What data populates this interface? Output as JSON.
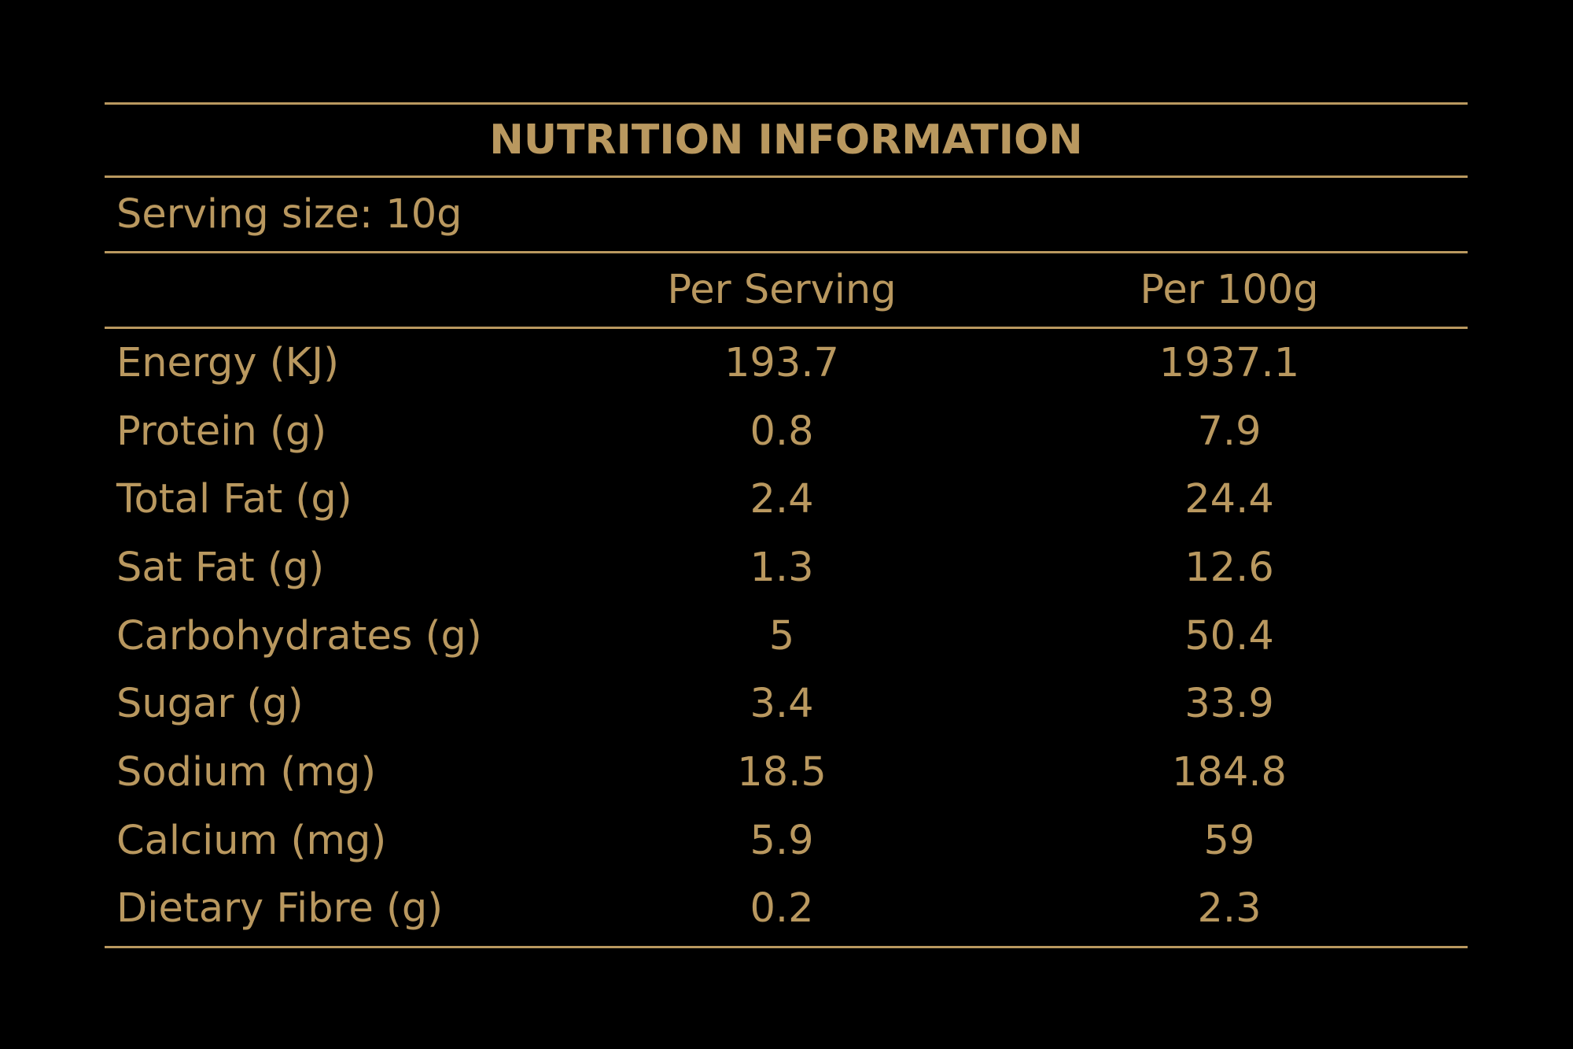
{
  "title": "NUTRITION INFORMATION",
  "serving_size": "Serving size: 10g",
  "columns": {
    "per_serving": "Per Serving",
    "per_100g": "Per 100g"
  },
  "rows": [
    {
      "label": "Energy (KJ)",
      "per_serving": "193.7",
      "per_100g": "1937.1"
    },
    {
      "label": "Protein (g)",
      "per_serving": "0.8",
      "per_100g": "7.9"
    },
    {
      "label": "Total Fat (g)",
      "per_serving": "2.4",
      "per_100g": "24.4"
    },
    {
      "label": "Sat Fat (g)",
      "per_serving": "1.3",
      "per_100g": "12.6"
    },
    {
      "label": "Carbohydrates (g)",
      "per_serving": "5",
      "per_100g": "50.4"
    },
    {
      "label": "Sugar (g)",
      "per_serving": "3.4",
      "per_100g": "33.9"
    },
    {
      "label": "Sodium (mg)",
      "per_serving": "18.5",
      "per_100g": "184.8"
    },
    {
      "label": "Calcium (mg)",
      "per_serving": "5.9",
      "per_100g": "59"
    },
    {
      "label": "Dietary Fibre (g)",
      "per_serving": "0.2",
      "per_100g": "2.3"
    }
  ],
  "colors": {
    "background": "#000000",
    "gold": "#b9985f"
  }
}
